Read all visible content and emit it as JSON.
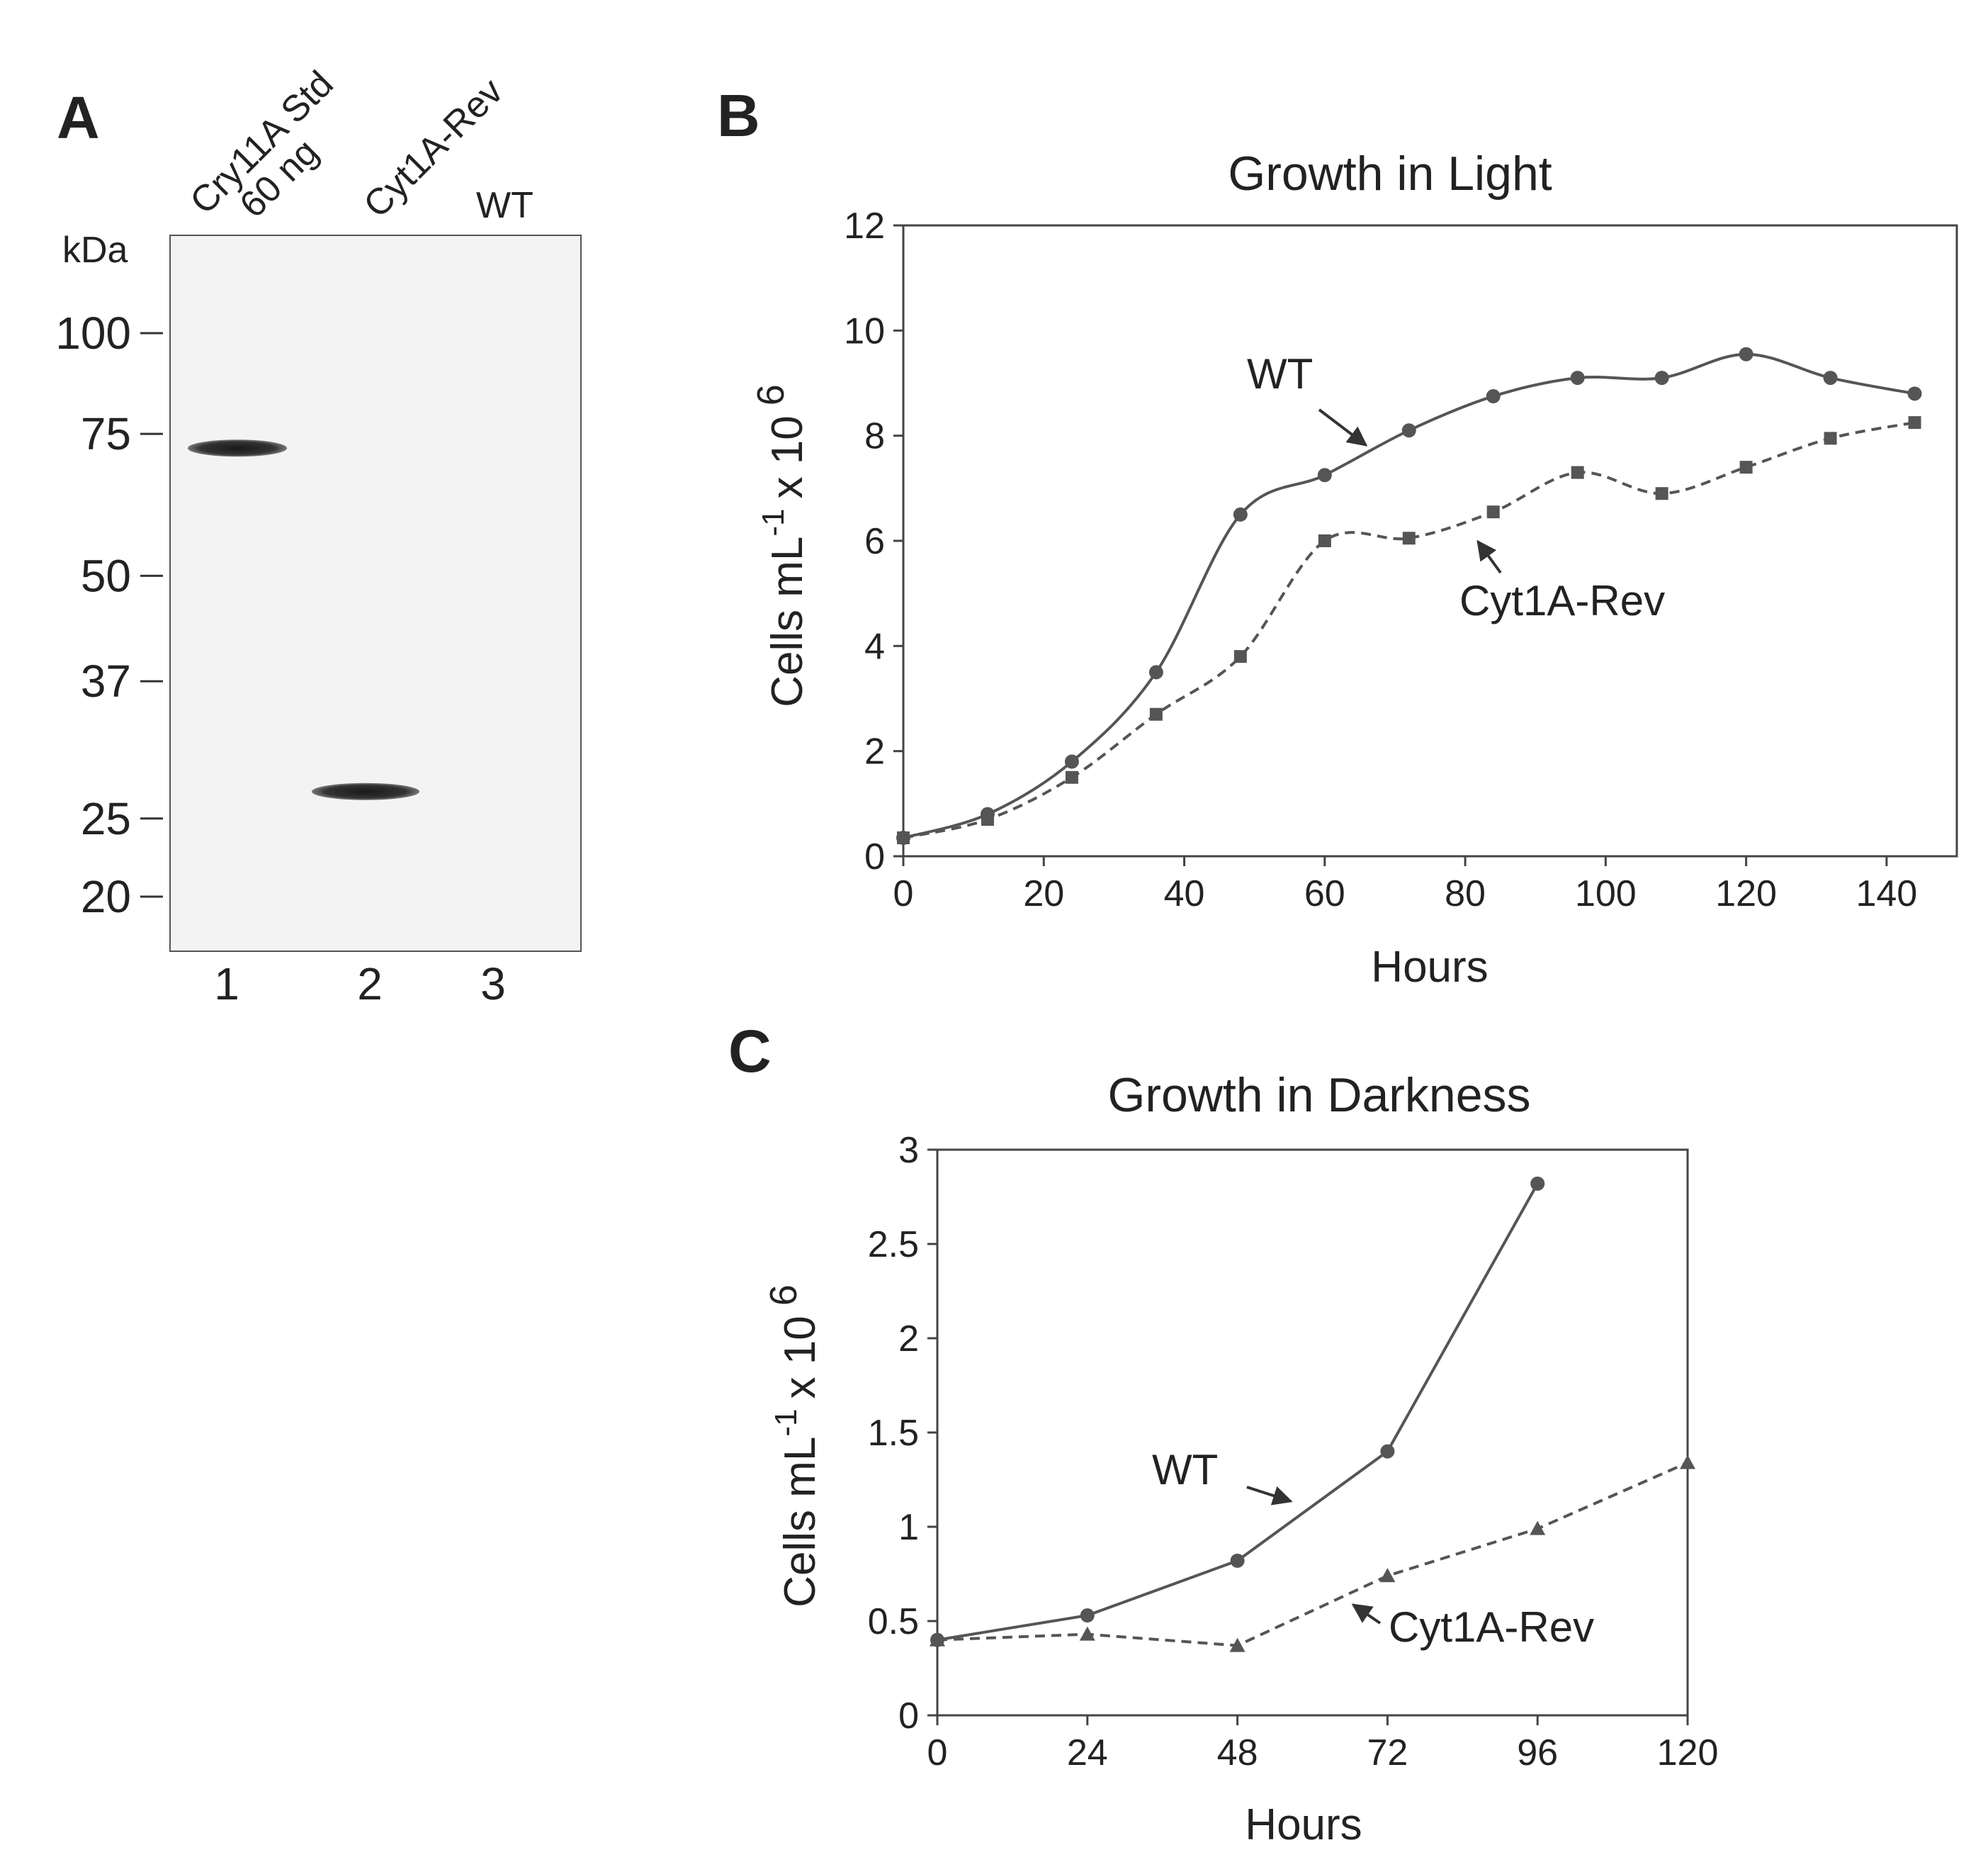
{
  "panel_letters": {
    "a": "A",
    "b": "B",
    "c": "C"
  },
  "blot": {
    "unit_label": "kDa",
    "markers": [
      {
        "label": "100",
        "kda": 100
      },
      {
        "label": "75",
        "kda": 75
      },
      {
        "label": "50",
        "kda": 50
      },
      {
        "label": "37",
        "kda": 37
      },
      {
        "label": "25",
        "kda": 25
      },
      {
        "label": "20",
        "kda": 20
      }
    ],
    "lanes": [
      {
        "number": "1",
        "label": "Cry11A Std",
        "sublabel": "60 ng"
      },
      {
        "number": "2",
        "label": "Cyt1A-Rev",
        "sublabel": ""
      },
      {
        "number": "3",
        "label": "WT",
        "sublabel": ""
      }
    ],
    "bands": [
      {
        "lane": "1",
        "kda": 72
      },
      {
        "lane": "2",
        "kda": 27
      }
    ]
  },
  "chart_data": [
    {
      "type": "line",
      "title": "Growth in Light",
      "xlabel": "Hours",
      "ylabel": "Cells mL",
      "ylabel_sup": "-1",
      "ylabel_mult": "x 10",
      "ylabel_exp": "6",
      "xlim": [
        0,
        150
      ],
      "ylim": [
        0,
        12
      ],
      "xticks": [
        0,
        20,
        40,
        60,
        80,
        100,
        120,
        140
      ],
      "yticks": [
        0,
        2,
        4,
        6,
        8,
        10,
        12
      ],
      "grid": false,
      "series": [
        {
          "name": "WT",
          "style": "solid",
          "marker": "circle",
          "x": [
            0,
            12,
            24,
            36,
            48,
            60,
            72,
            84,
            96,
            108,
            120,
            132,
            144
          ],
          "y": [
            0.35,
            0.8,
            1.8,
            3.5,
            6.5,
            7.25,
            8.1,
            8.75,
            9.1,
            9.1,
            9.55,
            9.1,
            8.8
          ]
        },
        {
          "name": "Cyt1A-Rev",
          "style": "dashed",
          "marker": "square",
          "x": [
            0,
            12,
            24,
            36,
            48,
            60,
            72,
            84,
            96,
            108,
            120,
            132,
            144
          ],
          "y": [
            0.35,
            0.7,
            1.5,
            2.7,
            3.8,
            6.0,
            6.05,
            6.55,
            7.3,
            6.9,
            7.4,
            7.95,
            8.25
          ]
        }
      ],
      "annotations": [
        {
          "text": "WT",
          "series": "WT"
        },
        {
          "text": "Cyt1A-Rev",
          "series": "Cyt1A-Rev"
        }
      ]
    },
    {
      "type": "line",
      "title": "Growth in Darkness",
      "xlabel": "Hours",
      "ylabel": "Cells mL",
      "ylabel_sup": "-1",
      "ylabel_mult": "x 10",
      "ylabel_exp": "6",
      "xlim": [
        0,
        120
      ],
      "ylim": [
        0,
        3
      ],
      "xticks": [
        0,
        24,
        48,
        72,
        96,
        120
      ],
      "ytick_values": [
        0,
        0.5,
        1,
        1.5,
        2,
        2.5,
        3
      ],
      "ytick_labels": [
        "0",
        "0.5",
        "1",
        "1.5",
        "2",
        "2.5",
        "3"
      ],
      "grid": false,
      "series": [
        {
          "name": "WT",
          "style": "solid",
          "marker": "circle",
          "x": [
            0,
            24,
            48,
            72,
            96
          ],
          "y": [
            0.4,
            0.53,
            0.82,
            1.4,
            2.82
          ]
        },
        {
          "name": "Cyt1A-Rev",
          "style": "dashed",
          "marker": "triangle",
          "x": [
            0,
            24,
            48,
            72,
            96,
            120
          ],
          "y": [
            0.4,
            0.43,
            0.37,
            0.74,
            0.99,
            1.34
          ]
        }
      ],
      "annotations": [
        {
          "text": "WT",
          "series": "WT"
        },
        {
          "text": "Cyt1A-Rev",
          "series": "Cyt1A-Rev"
        }
      ]
    }
  ]
}
